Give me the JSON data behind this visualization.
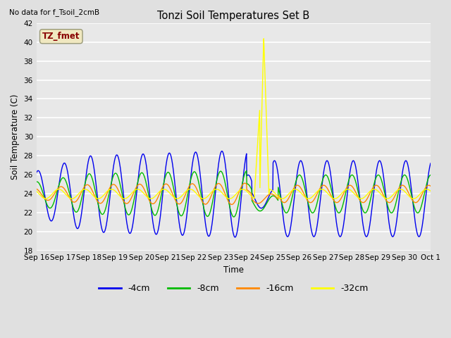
{
  "title": "Tonzi Soil Temperatures Set B",
  "subtitle": "No data for f_Tsoil_2cmB",
  "xlabel": "Time",
  "ylabel": "Soil Temperature (C)",
  "ylim": [
    18,
    42
  ],
  "yticks": [
    18,
    20,
    22,
    24,
    26,
    28,
    30,
    32,
    34,
    36,
    38,
    40,
    42
  ],
  "bg_color": "#e0e0e0",
  "plot_bg_color": "#e8e8e8",
  "grid_color": "#ffffff",
  "legend_box_label": "TZ_fmet",
  "legend_box_color": "#880000",
  "legend_box_bg": "#f0e8c0",
  "line_colors": {
    "-4cm": "#0000ee",
    "-8cm": "#00bb00",
    "-16cm": "#ff8800",
    "-32cm": "#ffff00"
  },
  "x_labels": [
    "Sep 16",
    "Sep 17",
    "Sep 18",
    "Sep 19",
    "Sep 20",
    "Sep 21",
    "Sep 22",
    "Sep 23",
    "Sep 24",
    "Sep 25",
    "Sep 26",
    "Sep 27",
    "Sep 28",
    "Sep 29",
    "Sep 30",
    "Oct 1"
  ],
  "num_points": 1440
}
